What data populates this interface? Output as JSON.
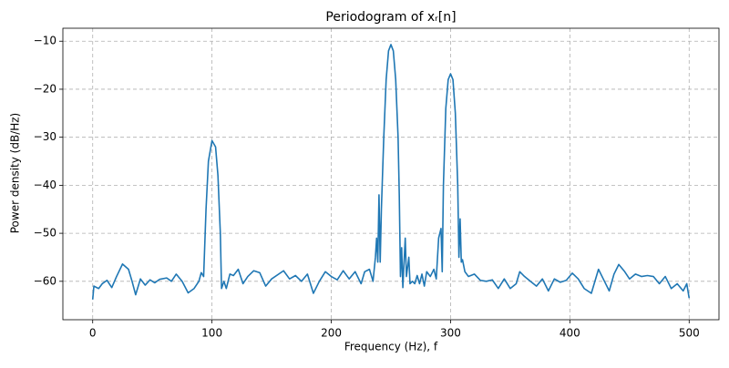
{
  "chart_data": {
    "type": "line",
    "title": "Periodogram of xᵣ[n]",
    "x_label": "Frequency (Hz), f",
    "y_label": "Power density (dB/Hz)",
    "xlim": [
      -25,
      525
    ],
    "ylim": [
      -68,
      -7.3
    ],
    "xticks": [
      0,
      100,
      200,
      300,
      400,
      500
    ],
    "yticks": [
      {
        "value": -60,
        "label": "−60"
      },
      {
        "value": -50,
        "label": "−50"
      },
      {
        "value": -40,
        "label": "−40"
      },
      {
        "value": -30,
        "label": "−30"
      },
      {
        "value": -20,
        "label": "−20"
      },
      {
        "value": -10,
        "label": "−10"
      }
    ],
    "grid": true,
    "series": [
      {
        "color": "#1f77b4",
        "x": [
          0,
          1,
          5,
          8,
          12,
          16,
          20,
          25,
          30,
          33,
          36,
          40,
          44,
          48,
          52,
          56,
          62,
          66,
          70,
          75,
          80,
          85,
          89,
          91,
          93,
          95,
          97,
          100,
          103,
          105,
          107,
          108,
          110,
          112,
          115,
          118,
          122,
          126,
          130,
          135,
          140,
          145,
          150,
          160,
          165,
          170,
          175,
          180,
          185,
          190,
          195,
          200,
          205,
          210,
          215,
          220,
          225,
          228,
          232,
          235,
          237,
          238,
          239,
          240,
          241,
          242,
          244,
          246,
          248,
          250,
          252,
          254,
          256,
          257,
          258,
          259,
          260,
          261,
          262,
          263,
          265,
          266,
          268,
          270,
          272,
          274,
          276,
          278,
          280,
          283,
          286,
          288,
          290,
          292,
          293,
          294,
          296,
          298,
          300,
          302,
          304,
          306,
          307,
          308,
          309,
          310,
          312,
          315,
          320,
          325,
          330,
          335,
          340,
          345,
          350,
          355,
          358,
          362,
          367,
          372,
          377,
          382,
          387,
          392,
          397,
          402,
          407,
          412,
          418,
          424,
          428,
          433,
          437,
          441,
          446,
          450,
          455,
          460,
          465,
          470,
          475,
          480,
          485,
          490,
          495,
          498,
          500
        ],
        "values": [
          -63.8,
          -61,
          -61.5,
          -60.5,
          -59.8,
          -61.3,
          -59,
          -56.4,
          -57.5,
          -60,
          -62.8,
          -59.5,
          -60.8,
          -59.7,
          -60.3,
          -59.6,
          -59.3,
          -60,
          -58.5,
          -60,
          -62.4,
          -61.5,
          -60,
          -58.2,
          -59,
          -45,
          -35,
          -30.7,
          -32,
          -38,
          -50,
          -61.5,
          -60,
          -61.5,
          -58.5,
          -58.8,
          -57.5,
          -60.5,
          -59,
          -57.8,
          -58.2,
          -61,
          -59.5,
          -57.8,
          -59.5,
          -58.8,
          -60,
          -58.5,
          -62.5,
          -60,
          -58,
          -59,
          -59.7,
          -57.8,
          -59.5,
          -58,
          -60.5,
          -58,
          -57.5,
          -60,
          -55,
          -51,
          -56,
          -42,
          -56,
          -45,
          -30,
          -18,
          -12,
          -10.7,
          -12,
          -18,
          -30,
          -42,
          -59,
          -53,
          -61.3,
          -56,
          -51,
          -59,
          -55,
          -60.5,
          -60,
          -60.5,
          -58.8,
          -60.5,
          -58.5,
          -61,
          -58,
          -59,
          -57.5,
          -59.5,
          -51,
          -49,
          -58,
          -40,
          -24,
          -18,
          -16.8,
          -18,
          -25,
          -40,
          -55,
          -47,
          -56,
          -55.5,
          -58,
          -59,
          -58.5,
          -59.8,
          -60,
          -59.7,
          -61.5,
          -59.5,
          -61.5,
          -60.5,
          -58,
          -59,
          -60,
          -61,
          -59.5,
          -62,
          -59.5,
          -60.2,
          -59.8,
          -58.3,
          -59.5,
          -61.5,
          -62.5,
          -57.5,
          -59.5,
          -62,
          -58.5,
          -56.5,
          -58,
          -59.5,
          -58.5,
          -59,
          -58.8,
          -59,
          -60.5,
          -59,
          -61.5,
          -60.5,
          -62,
          -60.5,
          -63.5
        ]
      }
    ]
  }
}
